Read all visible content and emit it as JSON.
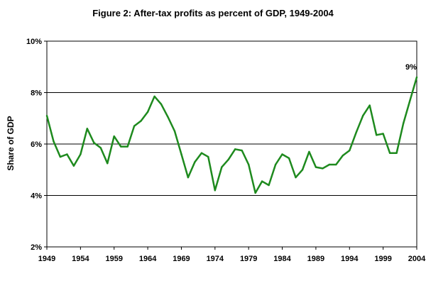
{
  "chart_data": {
    "type": "line",
    "title": "Figure 2:  After-tax profits as percent of GDP, 1949-2004",
    "xlabel": "",
    "ylabel": "Share of GDP",
    "ylim": [
      2,
      10
    ],
    "xlim": [
      1949,
      2004
    ],
    "grid": true,
    "yticks": [
      {
        "value": 2,
        "label": "2%"
      },
      {
        "value": 4,
        "label": "4%"
      },
      {
        "value": 6,
        "label": "6%"
      },
      {
        "value": 8,
        "label": "8%"
      },
      {
        "value": 10,
        "label": "10%"
      }
    ],
    "xticks": [
      {
        "value": 1949,
        "label": "1949"
      },
      {
        "value": 1954,
        "label": "1954"
      },
      {
        "value": 1959,
        "label": "1959"
      },
      {
        "value": 1964,
        "label": "1964"
      },
      {
        "value": 1969,
        "label": "1969"
      },
      {
        "value": 1974,
        "label": "1974"
      },
      {
        "value": 1979,
        "label": "1979"
      },
      {
        "value": 1984,
        "label": "1984"
      },
      {
        "value": 1989,
        "label": "1989"
      },
      {
        "value": 1994,
        "label": "1994"
      },
      {
        "value": 1999,
        "label": "1999"
      },
      {
        "value": 2004,
        "label": "2004"
      }
    ],
    "series": [
      {
        "name": "After-tax profits",
        "color": "#1e8a1e",
        "x": [
          1949,
          1950,
          1951,
          1952,
          1953,
          1954,
          1955,
          1956,
          1957,
          1958,
          1959,
          1960,
          1961,
          1962,
          1963,
          1964,
          1965,
          1966,
          1967,
          1968,
          1969,
          1970,
          1971,
          1972,
          1973,
          1974,
          1975,
          1976,
          1977,
          1978,
          1979,
          1980,
          1981,
          1982,
          1983,
          1984,
          1985,
          1986,
          1987,
          1988,
          1989,
          1990,
          1991,
          1992,
          1993,
          1994,
          1995,
          1996,
          1997,
          1998,
          1999,
          2000,
          2001,
          2002,
          2003,
          2004
        ],
        "values": [
          7.1,
          6.1,
          5.5,
          5.6,
          5.15,
          5.6,
          6.6,
          6.05,
          5.85,
          5.25,
          6.3,
          5.9,
          5.9,
          6.7,
          6.9,
          7.25,
          7.85,
          7.55,
          7.05,
          6.5,
          5.6,
          4.7,
          5.3,
          5.65,
          5.5,
          4.2,
          5.1,
          5.4,
          5.8,
          5.75,
          5.2,
          4.1,
          4.55,
          4.4,
          5.2,
          5.6,
          5.45,
          4.7,
          5.0,
          5.7,
          5.1,
          5.05,
          5.2,
          5.2,
          5.55,
          5.75,
          6.45,
          7.1,
          7.5,
          6.35,
          6.4,
          5.65,
          5.65,
          6.8,
          7.7,
          8.6
        ]
      }
    ],
    "annotations": [
      {
        "x": 2004,
        "y": 8.6,
        "text": "9%"
      }
    ]
  }
}
